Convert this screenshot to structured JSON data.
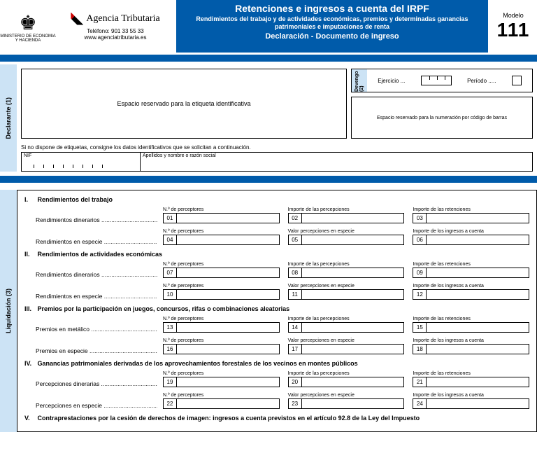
{
  "header": {
    "ministry": "MINISTERIO DE ECONOMIA Y HACIENDA",
    "agency_name": "Agencia Tributaria",
    "phone": "Teléfono: 901 33 55 33",
    "url": "www.agenciatributaria.es",
    "title_main": "Retenciones e ingresos a cuenta del IRPF",
    "title_sub": "Rendimientos del trabajo y de actividades económicas, premios y determinadas ganancias patrimoniales e imputaciones de renta",
    "title_decl": "Declaración - Documento de ingreso",
    "modelo_label": "Modelo",
    "modelo_num": "111"
  },
  "declarante": {
    "tab": "Declarante (1)",
    "etiqueta": "Espacio reservado para la etiqueta identificativa",
    "devengo_tab": "Devengo (2)",
    "ejercicio": "Ejercicio ...",
    "periodo": "Período .....",
    "barcode": "Espacio reservado para la numeración por código de barras",
    "help": "Si no dispone de etiquetas, consigne los datos identificativos que se solicitan a continuación.",
    "nif": "NIF",
    "apellidos": "Apellidos y nombre o razón social"
  },
  "liquidacion": {
    "tab": "Liquidación (3)",
    "field_headers": {
      "perceptores": "N.º de perceptores",
      "importe_percep": "Importe de las percepciones",
      "importe_reten": "Importe de las retenciones",
      "valor_especie": "Valor percepciones en especie",
      "importe_ingresos": "Importe de los ingresos a cuenta"
    },
    "sections": [
      {
        "num": "I.",
        "title": "Rendimientos del trabajo",
        "rows": [
          {
            "label": "Rendimientos dinerarios",
            "mode": "d",
            "cells": [
              "01",
              "02",
              "03"
            ]
          },
          {
            "label": "Rendimientos en especie",
            "mode": "e",
            "cells": [
              "04",
              "05",
              "06"
            ]
          }
        ]
      },
      {
        "num": "II.",
        "title": "Rendimientos de actividades económicas",
        "rows": [
          {
            "label": "Rendimientos dinerarios",
            "mode": "d",
            "cells": [
              "07",
              "08",
              "09"
            ]
          },
          {
            "label": "Rendimientos en especie",
            "mode": "e",
            "cells": [
              "10",
              "11",
              "12"
            ]
          }
        ]
      },
      {
        "num": "III.",
        "title": "Premios por la participación en juegos, concursos, rifas o combinaciones aleatorias",
        "rows": [
          {
            "label": "Premios en metálico",
            "mode": "d",
            "cells": [
              "13",
              "14",
              "15"
            ]
          },
          {
            "label": "Premios en especie",
            "mode": "e",
            "cells": [
              "16",
              "17",
              "18"
            ]
          }
        ]
      },
      {
        "num": "IV.",
        "title": "Ganancias patrimoniales derivadas de los aprovechamientos forestales de los vecinos en montes públicos",
        "rows": [
          {
            "label": "Percepciones dinerarias",
            "mode": "d",
            "cells": [
              "19",
              "20",
              "21"
            ]
          },
          {
            "label": "Percepciones en especie",
            "mode": "e",
            "cells": [
              "22",
              "23",
              "24"
            ]
          }
        ]
      },
      {
        "num": "V.",
        "title": "Contraprestaciones por la cesión de derechos de imagen: ingresos a cuenta previstos en el artículo 92.8 de la Ley del Impuesto",
        "rows": []
      }
    ]
  }
}
